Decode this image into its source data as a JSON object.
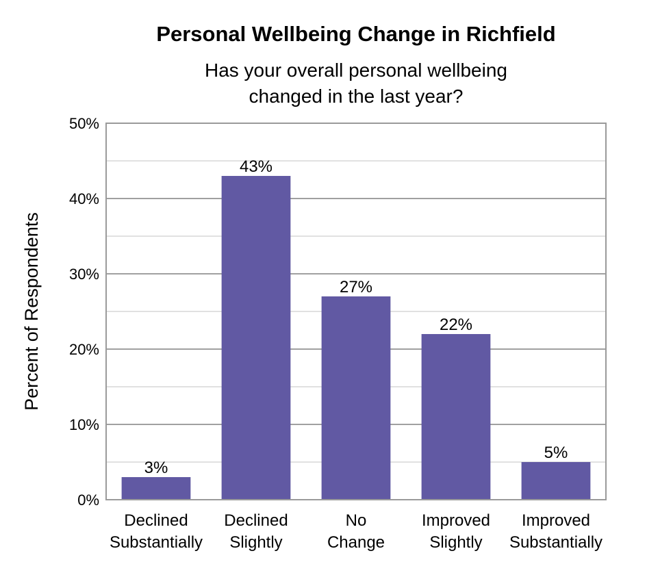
{
  "chart_data": {
    "type": "bar",
    "title": "Personal Wellbeing Change in Richfield",
    "subtitle": [
      "Has your overall personal wellbeing",
      "changed in the last year?"
    ],
    "ylabel": "Percent of Respondents",
    "xlabel": "",
    "categories": [
      [
        "Declined",
        "Substantially"
      ],
      [
        "Declined",
        "Slightly"
      ],
      [
        "No",
        "Change"
      ],
      [
        "Improved",
        "Slightly"
      ],
      [
        "Improved",
        "Substantially"
      ]
    ],
    "values": [
      3,
      43,
      27,
      22,
      5
    ],
    "data_labels": [
      "3%",
      "43%",
      "27%",
      "22%",
      "5%"
    ],
    "ylim": [
      0,
      50
    ],
    "yticks": [
      0,
      10,
      20,
      30,
      40,
      50
    ],
    "ytick_labels": [
      "0%",
      "10%",
      "20%",
      "30%",
      "40%",
      "50%"
    ],
    "grid": true,
    "bar_color": "#6159a3"
  }
}
